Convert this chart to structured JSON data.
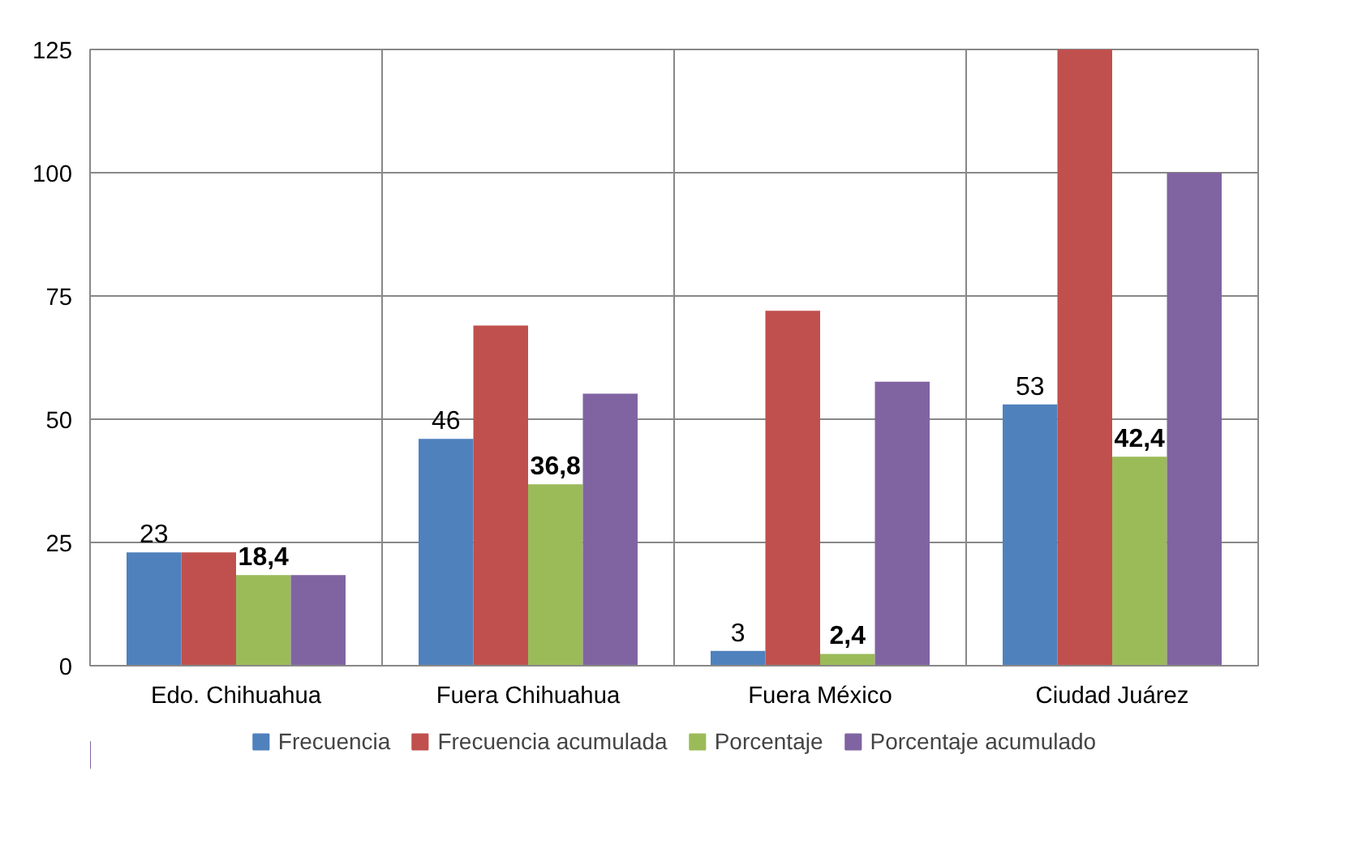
{
  "chart_data": {
    "type": "bar",
    "categories": [
      "Edo. Chihuahua",
      "Fuera Chihuahua",
      "Fuera México",
      "Ciudad Juárez"
    ],
    "series": [
      {
        "name": "Frecuencia",
        "color": "#4f81bd",
        "values": [
          23,
          46,
          3,
          53
        ],
        "value_labels": [
          "23",
          "46",
          "3",
          "53"
        ]
      },
      {
        "name": "Frecuencia acumulada",
        "color": "#c0504d",
        "values": [
          23,
          69,
          72,
          125
        ]
      },
      {
        "name": "Porcentaje",
        "color": "#9bbb59",
        "values": [
          18.4,
          36.8,
          2.4,
          42.4
        ],
        "value_labels": [
          "18,4",
          "36,8",
          "2,4",
          "42,4"
        ]
      },
      {
        "name": "Porcentaje acumulado",
        "color": "#8064a2",
        "values": [
          18.4,
          55.2,
          57.6,
          100
        ]
      }
    ],
    "ylim": [
      0,
      125
    ],
    "yticks": [
      0,
      25,
      50,
      75,
      100,
      125
    ],
    "grid": true,
    "legend": "bottom"
  }
}
